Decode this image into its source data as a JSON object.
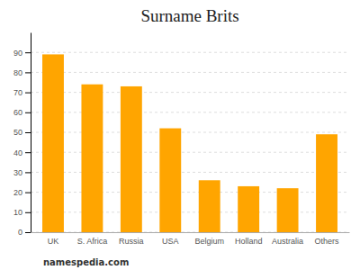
{
  "chart_data": {
    "type": "bar",
    "title": "Surname Brits",
    "categories": [
      "UK",
      "S. Africa",
      "Russia",
      "USA",
      "Belgium",
      "Holland",
      "Australia",
      "Others"
    ],
    "values": [
      89,
      74,
      73,
      52,
      26,
      23,
      22,
      49
    ],
    "color": "#FFA500",
    "ylim": [
      0,
      100
    ],
    "yticks": [
      0,
      10,
      20,
      30,
      40,
      50,
      60,
      70,
      80,
      90
    ],
    "grid": true,
    "annotations": [
      "namespedia.com"
    ]
  }
}
